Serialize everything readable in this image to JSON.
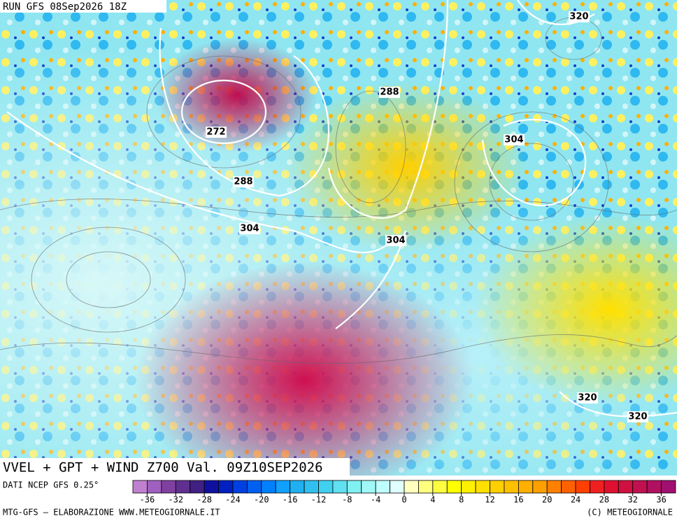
{
  "header": {
    "run": "RUN GFS 08Sep2026 18Z"
  },
  "map": {
    "title": "VVEL + GPT + WIND Z700 Val. 09Z10SEP2026",
    "contour_labels": [
      "320",
      "288",
      "272",
      "304",
      "288",
      "304",
      "304",
      "320",
      "320"
    ]
  },
  "colorbar": {
    "source": "DATI NCEP GFS 0.25°",
    "lim": [
      -38,
      38
    ],
    "ticks": [
      -36,
      -32,
      -28,
      -24,
      -20,
      -16,
      -12,
      -8,
      -4,
      0,
      4,
      8,
      12,
      16,
      20,
      24,
      28,
      32,
      36
    ],
    "colors": [
      "#c080d0",
      "#a060c0",
      "#8040a0",
      "#603090",
      "#402080",
      "#1010a0",
      "#0020c0",
      "#0040e0",
      "#0060f0",
      "#0080ff",
      "#10a0ff",
      "#20b0f0",
      "#30c0f0",
      "#40d0f0",
      "#60e0f0",
      "#80f0f0",
      "#a0f8f8",
      "#c0ffff",
      "#e0ffff",
      "#ffffc0",
      "#ffff80",
      "#ffff40",
      "#ffff00",
      "#fff000",
      "#ffe000",
      "#ffd000",
      "#ffc000",
      "#ffb000",
      "#ffa000",
      "#ff8000",
      "#ff6000",
      "#ff4000",
      "#f02020",
      "#e01030",
      "#d01040",
      "#c01050",
      "#b01060",
      "#a01070"
    ]
  },
  "footer": {
    "left": "MTG-GFS – ELABORAZIONE WWW.METEOGIORNALE.IT",
    "right": "(C) METEOGIORNALE"
  }
}
